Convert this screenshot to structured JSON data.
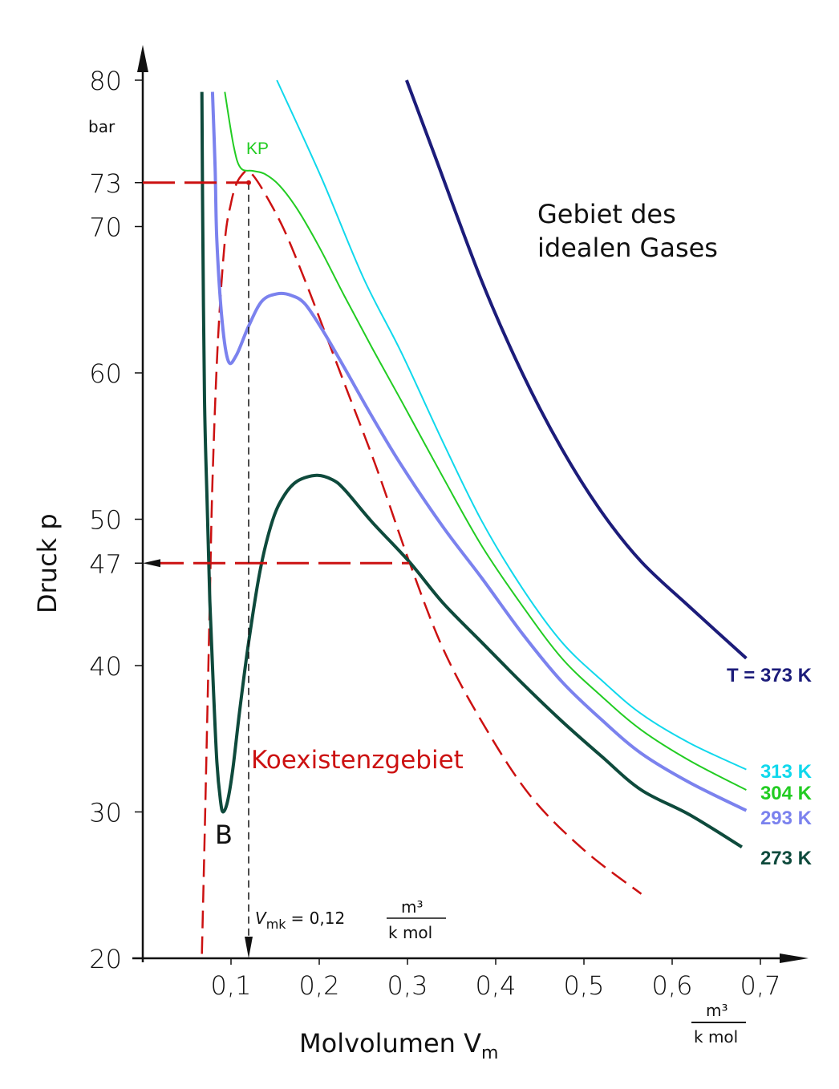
{
  "chart_data": {
    "type": "line",
    "title": "",
    "xlabel": "Molvolumen V",
    "xlabel_sub": "m",
    "ylabel": "Druck p",
    "x_unit_num": "m³",
    "x_unit_den": "k mol",
    "y_unit": "bar",
    "xlim": [
      0,
      0.75
    ],
    "ylim": [
      20,
      80
    ],
    "x_ticks": [
      0.1,
      0.2,
      0.3,
      0.4,
      0.5,
      0.6,
      0.7
    ],
    "x_tick_labels": [
      "0,1",
      "0,2",
      "0,3",
      "0,4",
      "0,5",
      "0,6",
      "0,7"
    ],
    "y_ticks": [
      20,
      30,
      40,
      47,
      50,
      60,
      70,
      73,
      80
    ],
    "y_tick_labels": [
      "20",
      "30",
      "40",
      "47",
      "50",
      "60",
      "70",
      "73",
      "80"
    ],
    "grid": false,
    "series": [
      {
        "name": "T = 373 K",
        "color": "#1c1c7a",
        "width": 4,
        "x": [
          0.299,
          0.33,
          0.384,
          0.43,
          0.475,
          0.52,
          0.565,
          0.62,
          0.684
        ],
        "y": [
          80,
          75,
          66.3,
          60,
          54.8,
          50.5,
          47.1,
          44,
          40.5
        ]
      },
      {
        "name": "313 K",
        "color": "#10d8ec",
        "width": 2,
        "x": [
          0.152,
          0.202,
          0.25,
          0.293,
          0.34,
          0.384,
          0.43,
          0.475,
          0.52,
          0.565,
          0.62,
          0.684
        ],
        "y": [
          80,
          73.4,
          66.5,
          61.4,
          55.3,
          49.9,
          45.3,
          41.6,
          39,
          36.7,
          34.7,
          32.9
        ]
      },
      {
        "name": "304 K",
        "color": "#22cc22",
        "width": 2,
        "x": [
          0.093,
          0.103,
          0.111,
          0.125,
          0.138,
          0.155,
          0.175,
          0.2,
          0.229,
          0.26,
          0.293,
          0.34,
          0.384,
          0.43,
          0.475,
          0.52,
          0.565,
          0.62,
          0.684
        ],
        "y": [
          79.2,
          75.5,
          74,
          73.8,
          73.6,
          72.8,
          71.2,
          68.6,
          65.2,
          61.7,
          58.1,
          52.9,
          48.2,
          44.1,
          40.5,
          37.9,
          35.6,
          33.5,
          31.5
        ]
      },
      {
        "name": "293 K",
        "color": "#7b82ee",
        "width": 4,
        "x": [
          0.079,
          0.082,
          0.084,
          0.09,
          0.097,
          0.106,
          0.12,
          0.135,
          0.152,
          0.168,
          0.184,
          0.205,
          0.229,
          0.26,
          0.293,
          0.34,
          0.384,
          0.43,
          0.475,
          0.52,
          0.565,
          0.62,
          0.684
        ],
        "y": [
          79.2,
          74,
          69,
          63.5,
          60.8,
          61.2,
          63.2,
          64.9,
          65.4,
          65.3,
          64.7,
          62.8,
          60.3,
          57,
          53.7,
          49.5,
          46,
          42.2,
          38.9,
          36.3,
          34,
          32,
          30.1
        ]
      },
      {
        "name": "273 K",
        "color": "#0e4a3c",
        "width": 4,
        "x": [
          0.067,
          0.068,
          0.07,
          0.073,
          0.076,
          0.08,
          0.084,
          0.088,
          0.091,
          0.096,
          0.102,
          0.11,
          0.12,
          0.133,
          0.147,
          0.16,
          0.175,
          0.197,
          0.215,
          0.229,
          0.26,
          0.302,
          0.34,
          0.384,
          0.43,
          0.475,
          0.52,
          0.565,
          0.62,
          0.679
        ],
        "y": [
          79.2,
          70,
          58.1,
          51,
          44.4,
          38.5,
          33.4,
          30.8,
          30,
          30.7,
          32.9,
          37,
          41.6,
          46.5,
          49.9,
          51.6,
          52.6,
          53,
          52.7,
          52,
          49.8,
          47.1,
          44.3,
          41.6,
          38.8,
          36.2,
          33.8,
          31.5,
          29.8,
          27.6
        ]
      }
    ],
    "coexistence_curve": {
      "name": "Koexistenzgebiet",
      "color": "#cc1111",
      "x": [
        0.067,
        0.07,
        0.073,
        0.076,
        0.079,
        0.085,
        0.093,
        0.1,
        0.106,
        0.112,
        0.118,
        0.125,
        0.138,
        0.16,
        0.184,
        0.205,
        0.229,
        0.265,
        0.302,
        0.34,
        0.384,
        0.438,
        0.5,
        0.565
      ],
      "y": [
        20.3,
        28,
        36.2,
        44.5,
        52.6,
        62,
        69,
        71.6,
        72.9,
        73.5,
        73.8,
        73.5,
        72.3,
        69.8,
        66.3,
        63,
        59.2,
        53.5,
        47.1,
        41.2,
        36.2,
        31.2,
        27.4,
        24.4
      ]
    },
    "annotations": {
      "critical_point": "KP",
      "critical_pressure": 73,
      "critical_volume": 0.12,
      "vmk_label": "V",
      "vmk_sub": "mk",
      "vmk_value": "= 0,12",
      "vapor_pressure_273": 47,
      "point_b": "B",
      "ideal_gas_line1": "Gebiet des",
      "ideal_gas_line2": "idealen Gases",
      "coexistence_label": "Koexistenzgebiet"
    }
  }
}
